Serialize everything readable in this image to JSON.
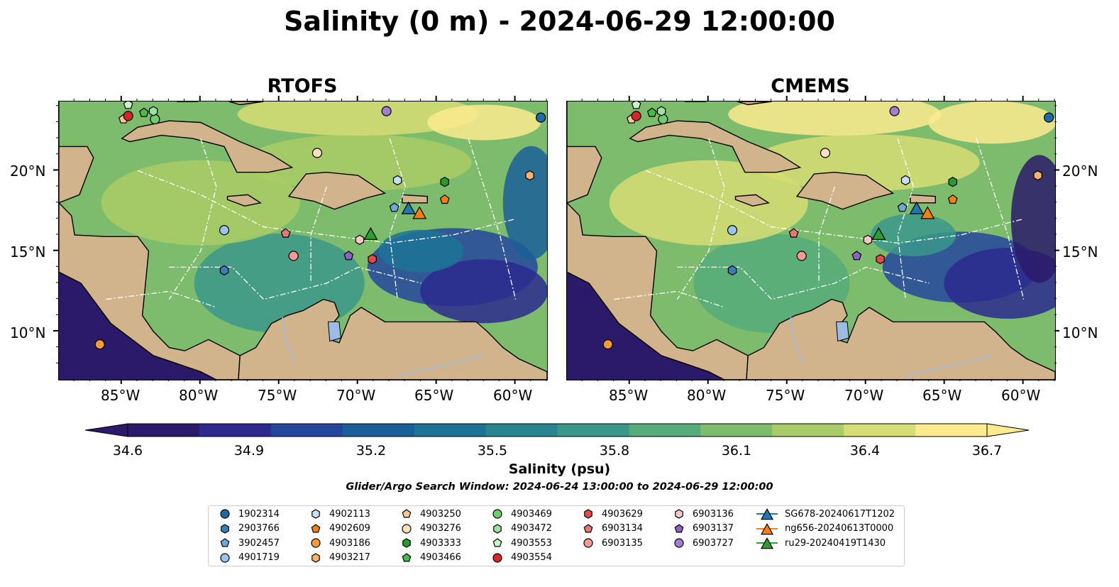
{
  "title": "Salinity (0 m) - 2024-06-29 12:00:00",
  "panels": [
    {
      "title": "RTOFS"
    },
    {
      "title": "CMEMS"
    }
  ],
  "axes": {
    "lat_ticks": [
      "20°N",
      "15°N",
      "10°N"
    ],
    "lon_ticks": [
      "85°W",
      "80°W",
      "75°W",
      "70°W",
      "65°W",
      "60°W"
    ]
  },
  "colorbar": {
    "label": "Salinity (psu)",
    "ticks": [
      "34.6",
      "34.9",
      "35.2",
      "35.5",
      "35.8",
      "36.1",
      "36.4",
      "36.7"
    ],
    "colors": [
      "#2b1a6a",
      "#2c2a8e",
      "#24479c",
      "#1a5f9a",
      "#1c7396",
      "#288590",
      "#3a9888",
      "#56ab7a",
      "#7dbc6c",
      "#a9cc66",
      "#d6dd74",
      "#fbeb8e"
    ]
  },
  "search_window": "Glider/Argo Search Window: 2024-06-24 13:00:00 to 2024-06-29 12:00:00",
  "legend": {
    "columns": [
      [
        {
          "label": "1902314",
          "shape": "circle",
          "color": "#1f6aa5"
        },
        {
          "label": "2903766",
          "shape": "hexagon",
          "color": "#3a7fb8"
        },
        {
          "label": "3902457",
          "shape": "pentagon",
          "color": "#6fa8d6"
        },
        {
          "label": "4901719",
          "shape": "circle",
          "color": "#9cc4e8"
        }
      ],
      [
        {
          "label": "4902113",
          "shape": "hexagon",
          "color": "#c8e0f4"
        },
        {
          "label": "4902609",
          "shape": "pentagon",
          "color": "#f07f14"
        },
        {
          "label": "4903186",
          "shape": "circle",
          "color": "#f39a3c"
        },
        {
          "label": "4903217",
          "shape": "hexagon",
          "color": "#f8b26a"
        }
      ],
      [
        {
          "label": "4903250",
          "shape": "pentagon",
          "color": "#f9c891"
        },
        {
          "label": "4903276",
          "shape": "circle",
          "color": "#fde0c0"
        },
        {
          "label": "4903333",
          "shape": "hexagon",
          "color": "#2a9a2a"
        },
        {
          "label": "4903466",
          "shape": "pentagon",
          "color": "#4cb84c"
        }
      ],
      [
        {
          "label": "4903469",
          "shape": "circle",
          "color": "#6fcc6f"
        },
        {
          "label": "4903472",
          "shape": "hexagon",
          "color": "#9ee09e"
        },
        {
          "label": "4903553",
          "shape": "pentagon",
          "color": "#c9f2c9"
        },
        {
          "label": "4903554",
          "shape": "circle",
          "color": "#d62728"
        }
      ],
      [
        {
          "label": "4903629",
          "shape": "hexagon",
          "color": "#e04b4b"
        },
        {
          "label": "6903134",
          "shape": "pentagon",
          "color": "#e87676"
        },
        {
          "label": "6903135",
          "shape": "circle",
          "color": "#f29a9a"
        }
      ],
      [
        {
          "label": "6903136",
          "shape": "hexagon",
          "color": "#f9c6c6"
        },
        {
          "label": "6903137",
          "shape": "pentagon",
          "color": "#8e63c2"
        },
        {
          "label": "6903727",
          "shape": "circle",
          "color": "#a07ed1"
        }
      ],
      [
        {
          "label": "SG678-20240617T1202",
          "shape": "triangle",
          "color": "#1f77b4"
        },
        {
          "label": "ng656-20240613T0000",
          "shape": "triangle",
          "color": "#ff7f0e"
        },
        {
          "label": "ru29-20240419T1430",
          "shape": "triangle",
          "color": "#2ca02c"
        }
      ]
    ]
  },
  "map": {
    "land_color": "#d2b48c",
    "lon_range": [
      -89,
      -58
    ],
    "lat_range": [
      7,
      24.3
    ],
    "markers": [
      {
        "id": "1902314",
        "lon": -58.4,
        "lat": 23.3
      },
      {
        "id": "2903766",
        "lon": -78.5,
        "lat": 13.8
      },
      {
        "id": "3902457",
        "lon": -67.7,
        "lat": 17.7
      },
      {
        "id": "4901719",
        "lon": -78.5,
        "lat": 16.3
      },
      {
        "id": "4902113",
        "lon": -67.5,
        "lat": 19.4
      },
      {
        "id": "4902609",
        "lon": -64.5,
        "lat": 18.2
      },
      {
        "id": "4903186",
        "lon": -86.4,
        "lat": 9.2
      },
      {
        "id": "4903217",
        "lon": -59.1,
        "lat": 19.7
      },
      {
        "id": "4903250",
        "lon": -84.9,
        "lat": 23.2
      },
      {
        "id": "4903276",
        "lon": -72.6,
        "lat": 21.1
      },
      {
        "id": "4903333",
        "lon": -64.5,
        "lat": 19.3
      },
      {
        "id": "4903466",
        "lon": -83.6,
        "lat": 23.6
      },
      {
        "id": "4903469",
        "lon": -82.9,
        "lat": 23.2
      },
      {
        "id": "4903472",
        "lon": -83.0,
        "lat": 23.7
      },
      {
        "id": "4903553",
        "lon": -84.6,
        "lat": 24.1
      },
      {
        "id": "4903554",
        "lon": -84.6,
        "lat": 23.4
      },
      {
        "id": "4903629",
        "lon": -69.1,
        "lat": 14.5
      },
      {
        "id": "6903134",
        "lon": -74.6,
        "lat": 16.1
      },
      {
        "id": "6903135",
        "lon": -74.1,
        "lat": 14.7
      },
      {
        "id": "6903136",
        "lon": -69.9,
        "lat": 15.7
      },
      {
        "id": "6903137",
        "lon": -70.6,
        "lat": 14.7
      },
      {
        "id": "6903727",
        "lon": -68.2,
        "lat": 23.7
      },
      {
        "id": "SG678-20240617T1202",
        "lon": -66.8,
        "lat": 17.6
      },
      {
        "id": "ng656-20240613T0000",
        "lon": -66.1,
        "lat": 17.3
      },
      {
        "id": "ru29-20240419T1430",
        "lon": -69.2,
        "lat": 16.0
      }
    ]
  }
}
